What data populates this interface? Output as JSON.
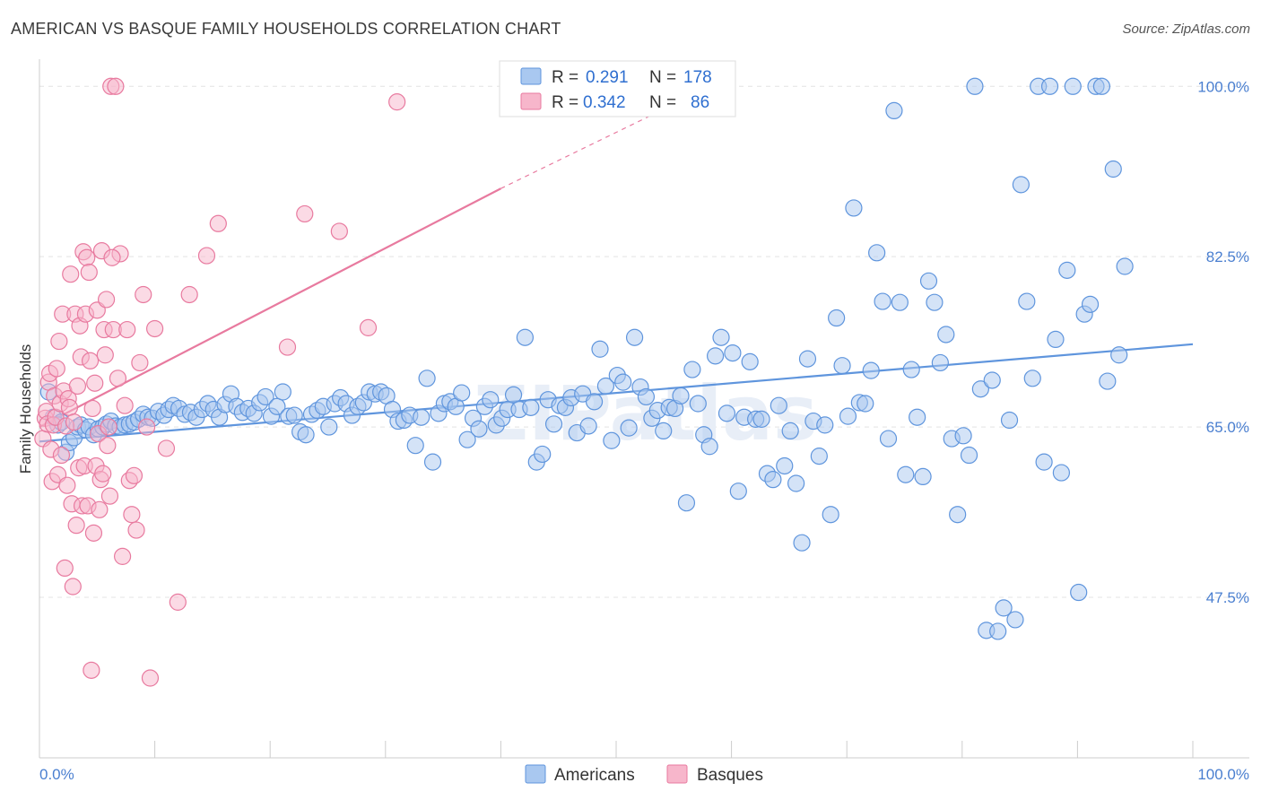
{
  "header": {
    "title": "AMERICAN VS BASQUE FAMILY HOUSEHOLDS CORRELATION CHART",
    "source": "Source: ZipAtlas.com"
  },
  "watermark": "ZIPatlas",
  "legend": {
    "rows": [
      {
        "r_label": "R =",
        "r_value": "0.291",
        "n_label": "N =",
        "n_value": "178",
        "color": "#a9c8f0",
        "stroke": "#5f95dd"
      },
      {
        "r_label": "R =",
        "r_value": "0.342",
        "n_label": "N =",
        "n_value": "86",
        "color": "#f7b6cb",
        "stroke": "#e87a9f"
      }
    ]
  },
  "bottom_legend": [
    {
      "label": "Americans",
      "color": "#a9c8f0",
      "stroke": "#5f95dd"
    },
    {
      "label": "Basques",
      "color": "#f7b6cb",
      "stroke": "#e87a9f"
    }
  ],
  "chart_data": {
    "type": "scatter",
    "title": "AMERICAN VS BASQUE FAMILY HOUSEHOLDS CORRELATION CHART",
    "ylabel": "Family Households",
    "xlabel": "",
    "xlim": [
      0,
      100
    ],
    "ylim": [
      31,
      101.5
    ],
    "x_tick_labels": [
      "0.0%",
      "100.0%"
    ],
    "y_ticks": [
      47.5,
      65.0,
      82.5,
      100.0
    ],
    "y_tick_labels": [
      "47.5%",
      "65.0%",
      "82.5%",
      "100.0%"
    ],
    "grid": true,
    "legend_position": "top-center",
    "series": [
      {
        "name": "Americans",
        "color": "#5f95dd",
        "fill": "#a9c8f0",
        "r": 0.291,
        "n": 178,
        "trend": {
          "x0": 0,
          "y0": 63.5,
          "x1": 100,
          "y1": 73.5,
          "dashed_from": null
        },
        "points": [
          [
            0.8,
            68.6
          ],
          [
            1.2,
            66.0
          ],
          [
            1.6,
            65.2
          ],
          [
            1.9,
            65.5
          ],
          [
            2.3,
            62.4
          ],
          [
            2.6,
            63.4
          ],
          [
            3.0,
            63.9
          ],
          [
            3.3,
            65.0
          ],
          [
            3.6,
            65.2
          ],
          [
            4.0,
            64.7
          ],
          [
            4.3,
            65.0
          ],
          [
            4.7,
            64.2
          ],
          [
            5.1,
            64.8
          ],
          [
            5.5,
            65.0
          ],
          [
            5.8,
            65.3
          ],
          [
            6.2,
            65.6
          ],
          [
            6.6,
            65.1
          ],
          [
            7.0,
            65.0
          ],
          [
            7.4,
            65.2
          ],
          [
            7.8,
            65.3
          ],
          [
            8.2,
            65.5
          ],
          [
            8.6,
            65.8
          ],
          [
            9.0,
            66.3
          ],
          [
            9.4,
            66.0
          ],
          [
            9.8,
            65.9
          ],
          [
            10.3,
            66.6
          ],
          [
            10.8,
            66.2
          ],
          [
            11.2,
            66.8
          ],
          [
            11.6,
            67.2
          ],
          [
            12.1,
            66.9
          ],
          [
            12.6,
            66.3
          ],
          [
            13.1,
            66.5
          ],
          [
            13.6,
            66.0
          ],
          [
            14.1,
            66.8
          ],
          [
            14.6,
            67.4
          ],
          [
            15.1,
            66.8
          ],
          [
            15.6,
            66.0
          ],
          [
            16.1,
            67.3
          ],
          [
            16.6,
            68.4
          ],
          [
            17.1,
            67.1
          ],
          [
            17.6,
            66.5
          ],
          [
            18.1,
            66.9
          ],
          [
            18.6,
            66.4
          ],
          [
            19.1,
            67.5
          ],
          [
            19.6,
            68.1
          ],
          [
            20.1,
            66.1
          ],
          [
            20.6,
            67.1
          ],
          [
            21.1,
            68.6
          ],
          [
            21.6,
            66.1
          ],
          [
            22.1,
            66.2
          ],
          [
            22.6,
            64.5
          ],
          [
            23.1,
            64.2
          ],
          [
            23.6,
            66.3
          ],
          [
            24.1,
            66.7
          ],
          [
            24.6,
            67.1
          ],
          [
            25.1,
            65.0
          ],
          [
            25.6,
            67.4
          ],
          [
            26.1,
            68.0
          ],
          [
            26.6,
            67.4
          ],
          [
            27.1,
            66.2
          ],
          [
            27.6,
            67.1
          ],
          [
            28.1,
            67.5
          ],
          [
            28.6,
            68.6
          ],
          [
            29.1,
            68.4
          ],
          [
            29.6,
            68.6
          ],
          [
            30.1,
            68.2
          ],
          [
            30.6,
            66.8
          ],
          [
            31.1,
            65.6
          ],
          [
            31.6,
            65.7
          ],
          [
            32.1,
            66.2
          ],
          [
            32.6,
            63.1
          ],
          [
            33.1,
            66.0
          ],
          [
            33.6,
            70.0
          ],
          [
            34.1,
            61.4
          ],
          [
            34.6,
            66.4
          ],
          [
            35.1,
            67.4
          ],
          [
            35.6,
            67.6
          ],
          [
            36.1,
            67.1
          ],
          [
            36.6,
            68.5
          ],
          [
            37.1,
            63.7
          ],
          [
            37.6,
            65.9
          ],
          [
            38.1,
            64.8
          ],
          [
            38.6,
            67.1
          ],
          [
            39.1,
            67.8
          ],
          [
            39.6,
            65.2
          ],
          [
            40.1,
            65.9
          ],
          [
            40.6,
            66.8
          ],
          [
            41.1,
            68.3
          ],
          [
            41.6,
            66.8
          ],
          [
            42.1,
            74.2
          ],
          [
            42.6,
            67.0
          ],
          [
            43.1,
            61.4
          ],
          [
            43.6,
            62.2
          ],
          [
            44.1,
            67.8
          ],
          [
            44.6,
            65.3
          ],
          [
            45.1,
            67.2
          ],
          [
            45.6,
            67.0
          ],
          [
            46.1,
            68.0
          ],
          [
            46.6,
            64.4
          ],
          [
            47.1,
            68.4
          ],
          [
            47.6,
            65.1
          ],
          [
            48.1,
            67.6
          ],
          [
            48.6,
            73.0
          ],
          [
            49.1,
            69.2
          ],
          [
            49.6,
            63.6
          ],
          [
            50.1,
            70.3
          ],
          [
            50.6,
            69.6
          ],
          [
            51.1,
            64.9
          ],
          [
            51.6,
            74.2
          ],
          [
            52.1,
            69.1
          ],
          [
            52.6,
            68.1
          ],
          [
            53.1,
            65.9
          ],
          [
            53.6,
            66.7
          ],
          [
            54.1,
            64.6
          ],
          [
            54.6,
            67.0
          ],
          [
            55.1,
            66.9
          ],
          [
            55.6,
            68.2
          ],
          [
            56.1,
            57.2
          ],
          [
            56.6,
            70.9
          ],
          [
            57.1,
            67.4
          ],
          [
            57.6,
            64.2
          ],
          [
            58.1,
            63.0
          ],
          [
            58.6,
            72.3
          ],
          [
            59.1,
            74.2
          ],
          [
            59.6,
            66.4
          ],
          [
            60.1,
            72.6
          ],
          [
            60.6,
            58.4
          ],
          [
            61.1,
            66.0
          ],
          [
            61.6,
            71.7
          ],
          [
            62.1,
            65.8
          ],
          [
            62.6,
            65.8
          ],
          [
            63.1,
            60.2
          ],
          [
            63.6,
            59.6
          ],
          [
            64.1,
            67.2
          ],
          [
            64.6,
            61.0
          ],
          [
            65.1,
            64.6
          ],
          [
            65.6,
            59.2
          ],
          [
            66.1,
            53.1
          ],
          [
            66.6,
            72.0
          ],
          [
            67.1,
            65.6
          ],
          [
            67.6,
            62.0
          ],
          [
            68.1,
            65.2
          ],
          [
            68.6,
            56.0
          ],
          [
            69.1,
            76.2
          ],
          [
            69.6,
            71.3
          ],
          [
            70.1,
            66.1
          ],
          [
            70.6,
            87.5
          ],
          [
            71.1,
            67.5
          ],
          [
            71.6,
            67.4
          ],
          [
            72.1,
            70.8
          ],
          [
            72.6,
            82.9
          ],
          [
            73.1,
            77.9
          ],
          [
            73.6,
            63.8
          ],
          [
            74.1,
            97.5
          ],
          [
            74.6,
            77.8
          ],
          [
            75.1,
            60.1
          ],
          [
            75.6,
            70.9
          ],
          [
            76.1,
            66.0
          ],
          [
            76.6,
            59.9
          ],
          [
            77.1,
            80.0
          ],
          [
            77.6,
            77.8
          ],
          [
            78.1,
            71.6
          ],
          [
            78.6,
            74.5
          ],
          [
            79.1,
            63.8
          ],
          [
            79.6,
            56.0
          ],
          [
            80.1,
            64.1
          ],
          [
            80.6,
            62.1
          ],
          [
            81.1,
            100.0
          ],
          [
            81.6,
            68.9
          ],
          [
            82.1,
            44.1
          ],
          [
            82.6,
            69.8
          ],
          [
            83.1,
            44.0
          ],
          [
            83.6,
            46.4
          ],
          [
            84.1,
            65.7
          ],
          [
            84.6,
            45.2
          ],
          [
            85.1,
            89.9
          ],
          [
            85.6,
            77.9
          ],
          [
            86.1,
            70.0
          ],
          [
            86.6,
            100.0
          ],
          [
            87.1,
            61.4
          ],
          [
            87.6,
            100.0
          ],
          [
            88.1,
            74.0
          ],
          [
            88.6,
            60.3
          ],
          [
            89.1,
            81.1
          ],
          [
            89.6,
            100.0
          ],
          [
            90.1,
            48.0
          ],
          [
            90.6,
            76.6
          ],
          [
            91.1,
            77.6
          ],
          [
            91.6,
            100.0
          ],
          [
            92.1,
            100.0
          ],
          [
            92.6,
            69.7
          ],
          [
            93.1,
            91.5
          ],
          [
            93.6,
            72.4
          ],
          [
            94.1,
            81.5
          ]
        ]
      },
      {
        "name": "Basques",
        "color": "#e87a9f",
        "fill": "#f7b6cb",
        "r": 0.342,
        "n": 86,
        "trend": {
          "x0": 0,
          "y0": 65.0,
          "x1": 40,
          "y1": 89.5,
          "dashed_from": 40,
          "dashed_to_x": 53,
          "dashed_to_y": 97.0
        },
        "points": [
          [
            0.3,
            63.8
          ],
          [
            0.5,
            65.9
          ],
          [
            0.6,
            66.6
          ],
          [
            0.7,
            65.3
          ],
          [
            0.8,
            69.6
          ],
          [
            0.9,
            70.5
          ],
          [
            1.0,
            62.7
          ],
          [
            1.1,
            59.4
          ],
          [
            1.2,
            65.2
          ],
          [
            1.3,
            68.2
          ],
          [
            1.4,
            66.0
          ],
          [
            1.5,
            71.0
          ],
          [
            1.6,
            60.1
          ],
          [
            1.7,
            73.8
          ],
          [
            1.8,
            67.4
          ],
          [
            1.9,
            62.1
          ],
          [
            2.0,
            76.6
          ],
          [
            2.1,
            68.7
          ],
          [
            2.2,
            50.5
          ],
          [
            2.3,
            65.1
          ],
          [
            2.4,
            59.0
          ],
          [
            2.5,
            67.9
          ],
          [
            2.6,
            67.0
          ],
          [
            2.7,
            80.7
          ],
          [
            2.8,
            57.1
          ],
          [
            2.9,
            48.6
          ],
          [
            3.0,
            65.5
          ],
          [
            3.1,
            76.6
          ],
          [
            3.2,
            54.9
          ],
          [
            3.3,
            69.2
          ],
          [
            3.4,
            60.8
          ],
          [
            3.5,
            75.4
          ],
          [
            3.6,
            72.2
          ],
          [
            3.7,
            56.9
          ],
          [
            3.8,
            83.0
          ],
          [
            3.9,
            61.0
          ],
          [
            4.0,
            76.6
          ],
          [
            4.1,
            82.4
          ],
          [
            4.2,
            56.9
          ],
          [
            4.3,
            80.9
          ],
          [
            4.4,
            71.8
          ],
          [
            4.5,
            40.0
          ],
          [
            4.6,
            66.9
          ],
          [
            4.7,
            54.1
          ],
          [
            4.8,
            69.5
          ],
          [
            4.9,
            61.0
          ],
          [
            5.0,
            77.0
          ],
          [
            5.1,
            64.3
          ],
          [
            5.2,
            56.5
          ],
          [
            5.3,
            59.6
          ],
          [
            5.4,
            83.1
          ],
          [
            5.5,
            60.2
          ],
          [
            5.6,
            75.0
          ],
          [
            5.7,
            72.4
          ],
          [
            5.8,
            78.1
          ],
          [
            5.9,
            63.1
          ],
          [
            6.0,
            65.0
          ],
          [
            6.1,
            57.9
          ],
          [
            6.2,
            100.0
          ],
          [
            6.4,
            75.0
          ],
          [
            6.6,
            100.0
          ],
          [
            6.8,
            70.0
          ],
          [
            7.0,
            82.8
          ],
          [
            7.2,
            51.7
          ],
          [
            7.4,
            67.2
          ],
          [
            7.6,
            75.0
          ],
          [
            7.8,
            59.5
          ],
          [
            8.0,
            56.0
          ],
          [
            8.2,
            60.0
          ],
          [
            8.4,
            54.4
          ],
          [
            8.7,
            71.6
          ],
          [
            9.0,
            78.6
          ],
          [
            9.3,
            65.0
          ],
          [
            9.6,
            39.2
          ],
          [
            10.0,
            75.1
          ],
          [
            11.0,
            62.8
          ],
          [
            12.0,
            47.0
          ],
          [
            13.0,
            78.6
          ],
          [
            14.5,
            82.6
          ],
          [
            15.5,
            85.9
          ],
          [
            21.5,
            73.2
          ],
          [
            23.0,
            86.9
          ],
          [
            26.0,
            85.1
          ],
          [
            28.5,
            75.2
          ],
          [
            31.0,
            98.4
          ],
          [
            6.3,
            82.4
          ]
        ]
      }
    ]
  }
}
